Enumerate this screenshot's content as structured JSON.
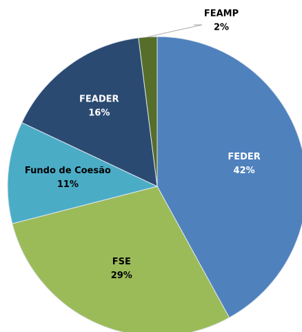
{
  "chart_data": {
    "type": "pie",
    "categories": [
      "FEDER",
      "FSE",
      "Fundo de Coesão",
      "FEADER",
      "FEAMP"
    ],
    "values": [
      42,
      29,
      11,
      16,
      2
    ],
    "value_labels": [
      "42%",
      "29%",
      "11%",
      "16%",
      "2%"
    ],
    "colors": [
      "#4f81bd",
      "#9bbb59",
      "#4bacc6",
      "#2b4a72",
      "#566e2a"
    ]
  }
}
